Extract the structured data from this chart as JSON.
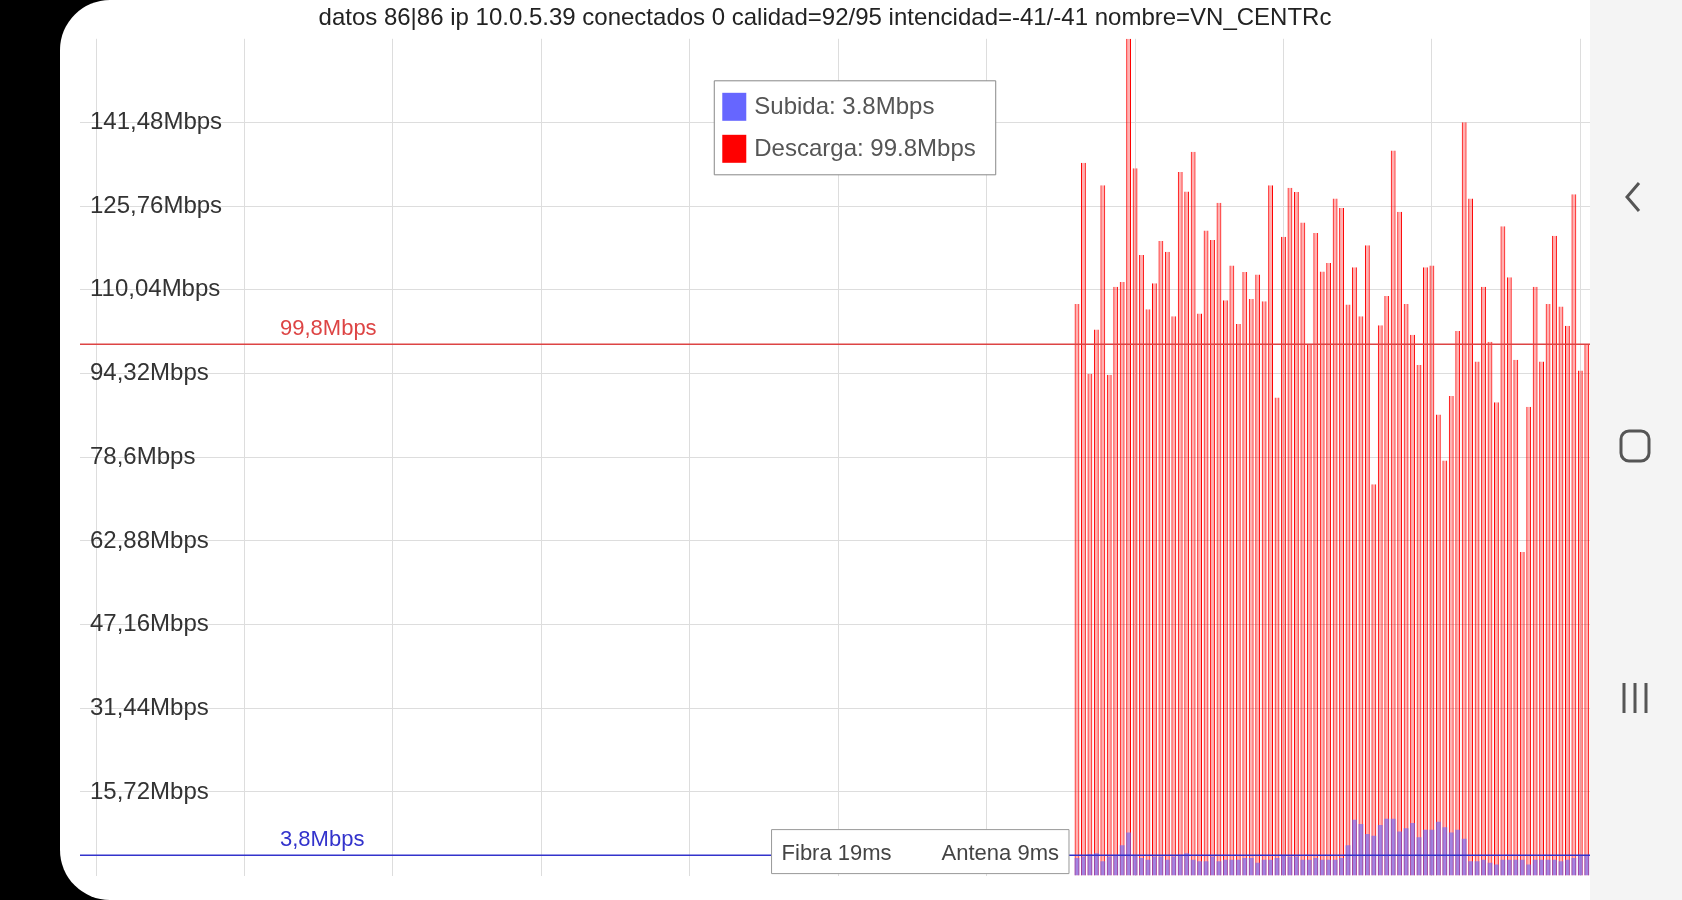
{
  "chart_data": {
    "type": "bar",
    "title": "datos 86|86 ip 10.0.5.39 conectados 0 calidad=92/95 intencidad=-41/-41 nombre=VN_CENTRc",
    "categories": [
      null,
      null,
      null,
      null,
      null,
      null,
      null,
      null,
      null,
      null,
      null,
      null,
      null,
      null,
      null,
      null,
      null,
      null,
      null,
      null,
      null,
      null,
      null,
      null,
      null,
      null,
      null,
      null,
      null,
      null,
      null,
      null,
      null,
      null,
      null,
      null,
      null,
      null,
      null,
      null,
      null,
      null,
      null,
      null,
      null,
      null,
      null,
      null,
      null,
      null,
      null,
      null,
      null,
      null,
      null,
      null,
      null,
      null,
      null,
      null,
      null,
      null,
      null,
      null,
      null,
      null,
      null,
      null,
      null,
      null,
      null,
      null,
      null,
      null,
      null,
      null,
      null,
      null,
      null,
      null,
      null,
      null,
      null,
      null,
      null,
      null,
      null,
      null,
      null,
      null,
      null,
      null,
      null,
      null,
      null,
      null,
      null,
      null,
      null,
      null,
      null,
      null,
      null,
      null,
      null,
      null,
      null,
      null,
      null,
      null,
      null,
      null,
      null,
      null,
      null,
      null,
      null,
      null,
      null,
      null,
      null,
      null,
      null,
      null,
      null,
      null,
      null,
      null,
      null,
      null,
      null,
      null,
      null,
      null,
      null,
      null,
      null,
      null,
      null,
      null,
      null,
      null,
      null,
      null,
      null,
      null,
      null,
      null,
      null,
      null,
      null,
      null,
      null,
      null,
      null,
      null,
      null,
      null,
      null,
      null,
      null,
      null,
      null,
      null,
      null,
      null,
      null,
      null,
      null,
      null,
      null,
      null,
      null,
      null,
      null,
      null,
      null,
      null,
      null,
      null,
      null,
      null,
      null,
      null,
      null,
      null,
      null,
      null,
      null,
      null,
      null,
      null,
      null,
      null,
      null,
      null,
      null,
      null,
      null,
      null,
      null,
      null,
      null,
      null,
      null,
      null,
      null,
      null,
      null,
      null,
      null,
      null,
      null,
      null,
      null,
      null,
      null,
      null,
      null,
      null,
      null,
      null,
      null,
      null,
      null,
      null,
      null,
      null,
      null,
      null,
      null,
      null,
      null,
      null
    ],
    "series": [
      {
        "name": "Descarga: 99.8Mbps",
        "color": "#ff0000",
        "values": [
          null,
          null,
          null,
          null,
          null,
          null,
          null,
          null,
          null,
          null,
          null,
          null,
          null,
          null,
          null,
          null,
          null,
          null,
          null,
          null,
          null,
          null,
          null,
          null,
          null,
          null,
          null,
          null,
          null,
          null,
          null,
          null,
          null,
          null,
          null,
          null,
          null,
          null,
          null,
          null,
          null,
          null,
          null,
          null,
          null,
          null,
          null,
          null,
          null,
          null,
          null,
          null,
          null,
          null,
          null,
          null,
          null,
          null,
          null,
          null,
          null,
          null,
          null,
          null,
          null,
          null,
          null,
          null,
          null,
          null,
          null,
          null,
          null,
          null,
          null,
          null,
          null,
          null,
          null,
          null,
          null,
          null,
          null,
          null,
          null,
          null,
          null,
          null,
          null,
          null,
          null,
          null,
          null,
          null,
          null,
          null,
          null,
          null,
          null,
          null,
          null,
          null,
          null,
          null,
          null,
          null,
          null,
          null,
          null,
          null,
          null,
          null,
          null,
          null,
          null,
          null,
          null,
          null,
          null,
          null,
          null,
          null,
          null,
          null,
          null,
          null,
          null,
          null,
          null,
          null,
          null,
          null,
          null,
          null,
          null,
          null,
          null,
          null,
          null,
          null,
          null,
          null,
          null,
          null,
          null,
          null,
          null,
          null,
          null,
          null,
          null,
          null,
          null,
          null,
          107.4,
          133.9,
          94.3,
          102.6,
          129.7,
          94.1,
          110.6,
          111.5,
          157.2,
          132.9,
          116.6,
          106.4,
          111.3,
          119.2,
          117.2,
          105.1,
          132.2,
          128.5,
          136.0,
          105.6,
          121.2,
          119.4,
          126.4,
          108.1,
          114.6,
          103.6,
          113.4,
          108.3,
          112.9,
          107.9,
          129.7,
          89.8,
          120.0,
          129.2,
          128.4,
          122.7,
          99.9,
          120.7,
          113.5,
          115.1,
          127.2,
          125.4,
          107.3,
          114.3,
          105.1,
          118.4,
          73.5,
          103.4,
          108.9,
          136.2,
          124.7,
          107.4,
          101.6,
          95.9,
          114.3,
          114.6,
          86.6,
          78.0,
          90.1,
          102.3,
          141.5,
          127.2,
          96.6,
          110.6,
          100.3,
          88.9,
          122.0,
          112.4,
          96.9,
          60.8,
          88.1,
          110.6,
          96.6,
          107.4,
          120.2,
          106.9,
          103.3,
          128.0,
          94.9,
          99.8
        ]
      },
      {
        "name": "Subida: 3.8Mbps",
        "color": "#6666ff",
        "values": [
          null,
          null,
          null,
          null,
          null,
          null,
          null,
          null,
          null,
          null,
          null,
          null,
          null,
          null,
          null,
          null,
          null,
          null,
          null,
          null,
          null,
          null,
          null,
          null,
          null,
          null,
          null,
          null,
          null,
          null,
          null,
          null,
          null,
          null,
          null,
          null,
          null,
          null,
          null,
          null,
          null,
          null,
          null,
          null,
          null,
          null,
          null,
          null,
          null,
          null,
          null,
          null,
          null,
          null,
          null,
          null,
          null,
          null,
          null,
          null,
          null,
          null,
          null,
          null,
          null,
          null,
          null,
          null,
          null,
          null,
          null,
          null,
          null,
          null,
          null,
          null,
          null,
          null,
          null,
          null,
          null,
          null,
          null,
          null,
          null,
          null,
          null,
          null,
          null,
          null,
          null,
          null,
          null,
          null,
          null,
          null,
          null,
          null,
          null,
          null,
          null,
          null,
          null,
          null,
          null,
          null,
          null,
          null,
          null,
          null,
          null,
          null,
          null,
          null,
          null,
          null,
          null,
          null,
          null,
          null,
          null,
          null,
          null,
          null,
          null,
          null,
          null,
          null,
          null,
          null,
          null,
          null,
          null,
          null,
          null,
          null,
          null,
          null,
          null,
          null,
          null,
          null,
          null,
          null,
          null,
          null,
          null,
          null,
          null,
          null,
          null,
          null,
          null,
          null,
          3.3,
          3.6,
          4.0,
          4.2,
          2.7,
          3.6,
          3.9,
          5.7,
          8.1,
          3.9,
          3.3,
          3.0,
          3.6,
          3.6,
          3.0,
          3.6,
          3.9,
          4.2,
          3.0,
          2.7,
          2.7,
          3.6,
          2.7,
          3.0,
          3.0,
          3.0,
          3.3,
          3.3,
          2.4,
          3.0,
          3.0,
          3.3,
          3.9,
          3.6,
          3.6,
          3.0,
          3.0,
          3.3,
          3.0,
          3.0,
          3.0,
          3.3,
          5.7,
          10.5,
          9.7,
          7.8,
          7.5,
          9.5,
          10.7,
          10.7,
          8.3,
          8.9,
          9.9,
          7.2,
          8.6,
          8.6,
          10.1,
          9.1,
          8.1,
          8.6,
          6.9,
          2.7,
          2.7,
          3.0,
          2.4,
          2.1,
          3.0,
          3.0,
          3.0,
          3.0,
          2.1,
          3.0,
          3.0,
          3.0,
          3.0,
          2.7,
          3.0,
          3.3,
          3.9,
          3.9
        ]
      }
    ],
    "ylim": [
      0,
      157.2
    ],
    "yticks": [
      {
        "value": 15.72,
        "label": "15,72Mbps"
      },
      {
        "value": 31.44,
        "label": "31,44Mbps"
      },
      {
        "value": 47.16,
        "label": "47,16Mbps"
      },
      {
        "value": 62.88,
        "label": "62,88Mbps"
      },
      {
        "value": 78.6,
        "label": "78,6Mbps"
      },
      {
        "value": 94.32,
        "label": "94,32Mbps"
      },
      {
        "value": 110.04,
        "label": "110,04Mbps"
      },
      {
        "value": 125.76,
        "label": "125,76Mbps"
      },
      {
        "value": 141.48,
        "label": "141,48Mbps"
      }
    ],
    "tick_labels": "y",
    "grid": true,
    "legend": "top",
    "ref_lines": [
      {
        "axis": "y",
        "value": 99.8,
        "label": "99,8Mbps",
        "color": "#dd4444"
      },
      {
        "axis": "y",
        "value": 3.8,
        "label": "3,8Mbps",
        "color": "#3333cc"
      }
    ],
    "annotations": [
      "Fibra 19ms",
      "Antena 9ms"
    ]
  }
}
